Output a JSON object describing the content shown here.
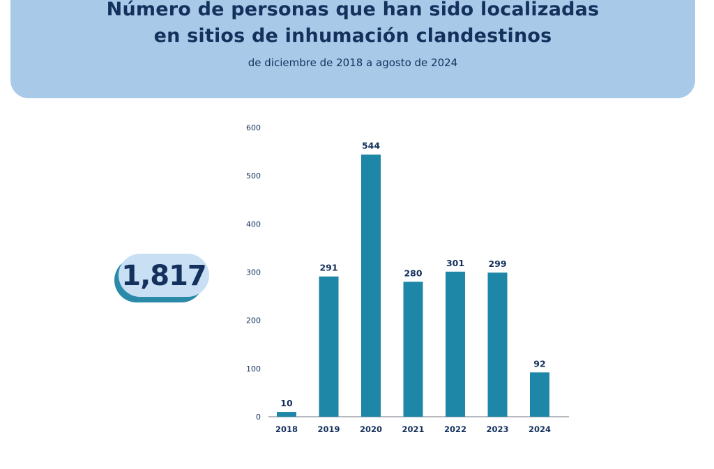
{
  "header": {
    "title_line1": "Número de personas que han sido localizadas",
    "title_line2": "en sitios de inhumación clandestinos",
    "subtitle": "de diciembre de 2018 a agosto de 2024"
  },
  "total": {
    "value": "1,817"
  },
  "colors": {
    "header_bg": "#a9c9e8",
    "bar": "#1e86a6",
    "text": "#14305c",
    "badge_bg": "#c8dff4",
    "badge_shadow": "#2a8aa8"
  },
  "chart_data": {
    "type": "bar",
    "categories": [
      "2018",
      "2019",
      "2020",
      "2021",
      "2022",
      "2023",
      "2024"
    ],
    "values": [
      10,
      291,
      544,
      280,
      301,
      299,
      92
    ],
    "ylim": [
      0,
      600
    ],
    "yticks": [
      0,
      100,
      200,
      300,
      400,
      500,
      600
    ],
    "grid": false,
    "legend": "none"
  }
}
